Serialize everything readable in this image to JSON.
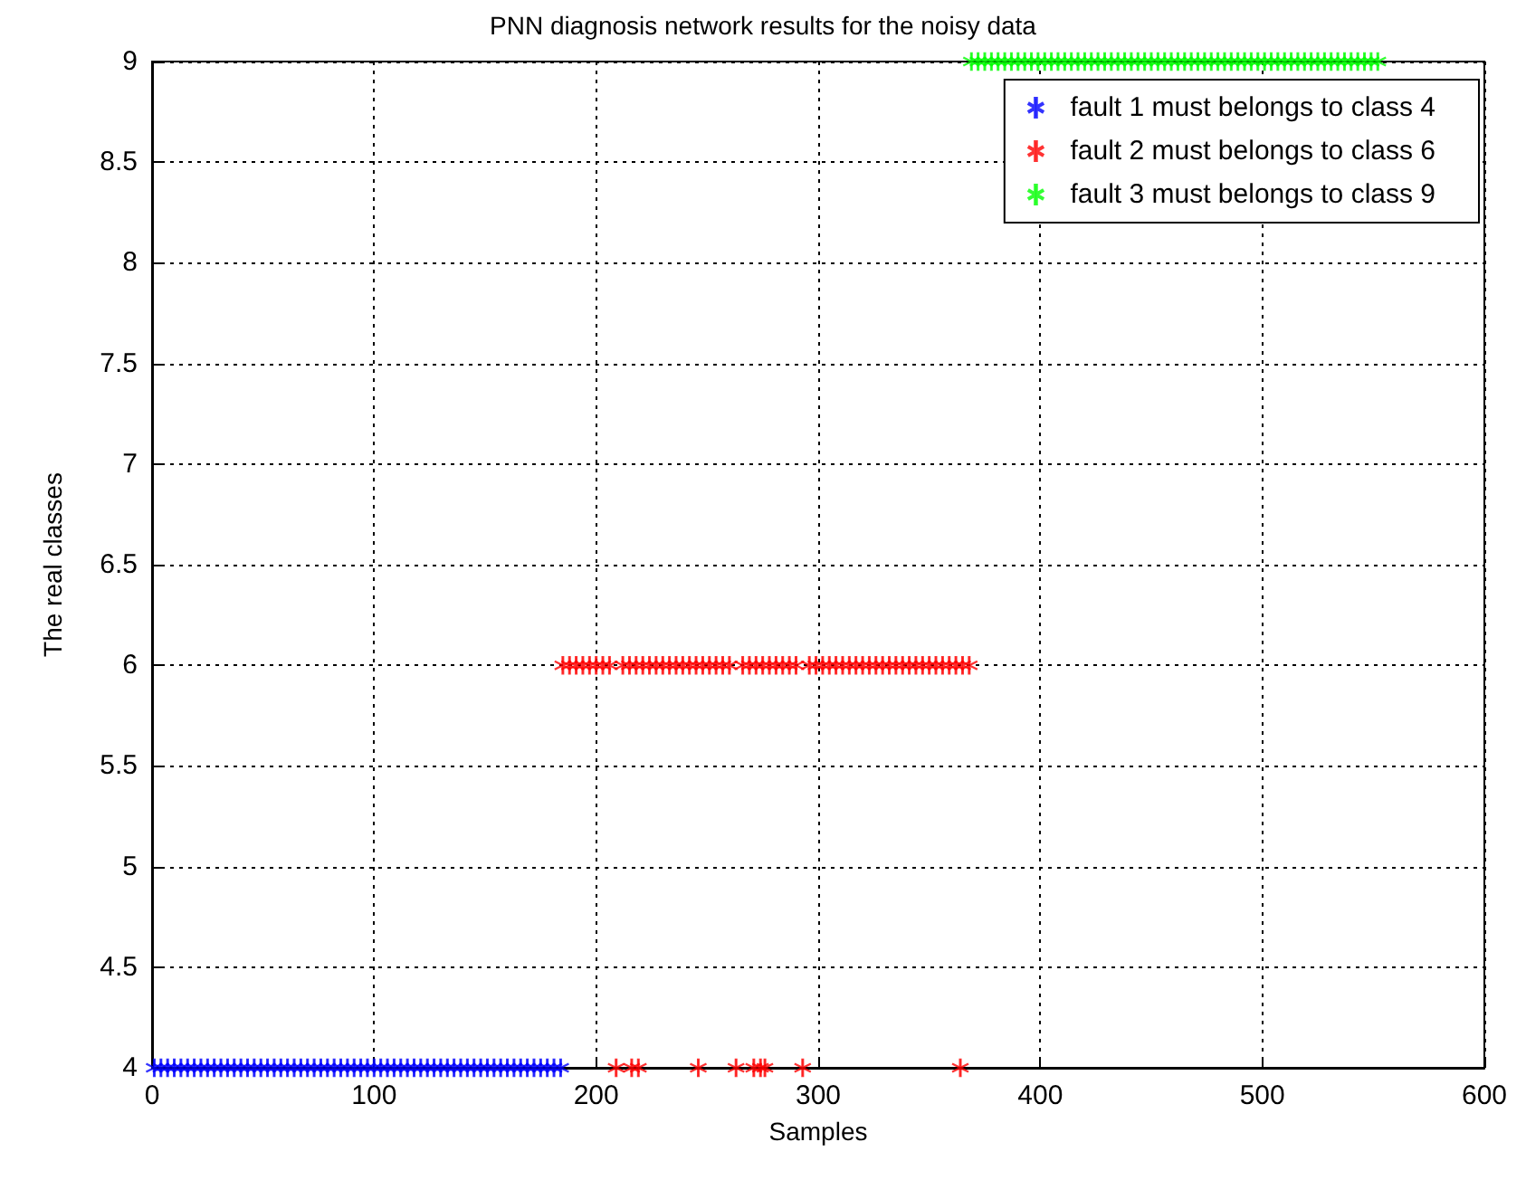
{
  "chart_data": {
    "type": "scatter",
    "title": "PNN diagnosis network results for the noisy data",
    "xlabel": "Samples",
    "ylabel": "The real classes",
    "xlim": [
      0,
      600
    ],
    "xticks": [
      0,
      100,
      200,
      300,
      400,
      500,
      600
    ],
    "ylim": [
      4,
      9
    ],
    "yticks": [
      4,
      4.5,
      5,
      5.5,
      6,
      6.5,
      7,
      7.5,
      8,
      8.5,
      9
    ],
    "grid": true,
    "legend": "top right",
    "marker": "cross",
    "series": [
      {
        "name": "fault 1 must belongs to class 4",
        "color": "#0000ff",
        "x": [
          1,
          4,
          7,
          10,
          13,
          16,
          19,
          22,
          25,
          28,
          31,
          34,
          37,
          40,
          43,
          46,
          49,
          52,
          55,
          58,
          61,
          64,
          67,
          70,
          73,
          76,
          79,
          82,
          85,
          88,
          91,
          94,
          97,
          100,
          103,
          106,
          109,
          112,
          115,
          118,
          121,
          124,
          127,
          130,
          133,
          136,
          139,
          142,
          145,
          148,
          151,
          154,
          157,
          160,
          163,
          166,
          169,
          172,
          175,
          178,
          181,
          184
        ],
        "values": [
          4,
          4,
          4,
          4,
          4,
          4,
          4,
          4,
          4,
          4,
          4,
          4,
          4,
          4,
          4,
          4,
          4,
          4,
          4,
          4,
          4,
          4,
          4,
          4,
          4,
          4,
          4,
          4,
          4,
          4,
          4,
          4,
          4,
          4,
          4,
          4,
          4,
          4,
          4,
          4,
          4,
          4,
          4,
          4,
          4,
          4,
          4,
          4,
          4,
          4,
          4,
          4,
          4,
          4,
          4,
          4,
          4,
          4,
          4,
          4,
          4,
          4
        ]
      },
      {
        "name": "fault 2 must belongs to class 6",
        "color": "#ff0000",
        "x": [
          185,
          188,
          191,
          194,
          197,
          200,
          203,
          206,
          209,
          212,
          215,
          216,
          218,
          219,
          221,
          224,
          227,
          230,
          233,
          236,
          239,
          242,
          245,
          246,
          248,
          251,
          254,
          257,
          260,
          263,
          266,
          269,
          271,
          272,
          274,
          275,
          276,
          278,
          281,
          284,
          287,
          290,
          293,
          296,
          299,
          302,
          305,
          308,
          311,
          314,
          317,
          320,
          323,
          326,
          329,
          332,
          335,
          338,
          341,
          344,
          347,
          350,
          353,
          356,
          359,
          362,
          364,
          365,
          368
        ],
        "values": [
          6,
          6,
          6,
          6,
          6,
          6,
          6,
          6,
          4,
          6,
          6,
          4,
          6,
          4,
          6,
          6,
          6,
          6,
          6,
          6,
          6,
          6,
          6,
          4,
          6,
          6,
          6,
          6,
          6,
          4,
          6,
          6,
          4,
          6,
          4,
          6,
          4,
          6,
          6,
          6,
          6,
          6,
          4,
          6,
          6,
          6,
          6,
          6,
          6,
          6,
          6,
          6,
          6,
          6,
          6,
          6,
          6,
          6,
          6,
          6,
          6,
          6,
          6,
          6,
          6,
          6,
          4,
          6,
          6
        ]
      },
      {
        "name": "fault 3 must belongs to class 9",
        "color": "#00ff00",
        "x": [
          369,
          372,
          375,
          378,
          381,
          384,
          387,
          390,
          393,
          396,
          399,
          402,
          405,
          408,
          411,
          414,
          417,
          420,
          423,
          426,
          429,
          432,
          435,
          438,
          441,
          444,
          447,
          450,
          453,
          456,
          459,
          462,
          465,
          468,
          471,
          474,
          477,
          480,
          483,
          486,
          489,
          492,
          495,
          498,
          501,
          504,
          507,
          510,
          513,
          516,
          519,
          522,
          525,
          528,
          531,
          534,
          537,
          540,
          543,
          546,
          549,
          552
        ],
        "values": [
          9,
          9,
          9,
          9,
          9,
          9,
          9,
          9,
          9,
          9,
          9,
          9,
          9,
          9,
          9,
          9,
          9,
          9,
          9,
          9,
          9,
          9,
          9,
          9,
          9,
          9,
          9,
          9,
          9,
          9,
          9,
          9,
          9,
          9,
          9,
          9,
          9,
          9,
          9,
          9,
          9,
          9,
          9,
          9,
          9,
          9,
          9,
          9,
          9,
          9,
          9,
          9,
          9,
          9,
          9,
          9,
          9,
          9,
          9,
          9,
          9,
          9
        ]
      }
    ]
  }
}
